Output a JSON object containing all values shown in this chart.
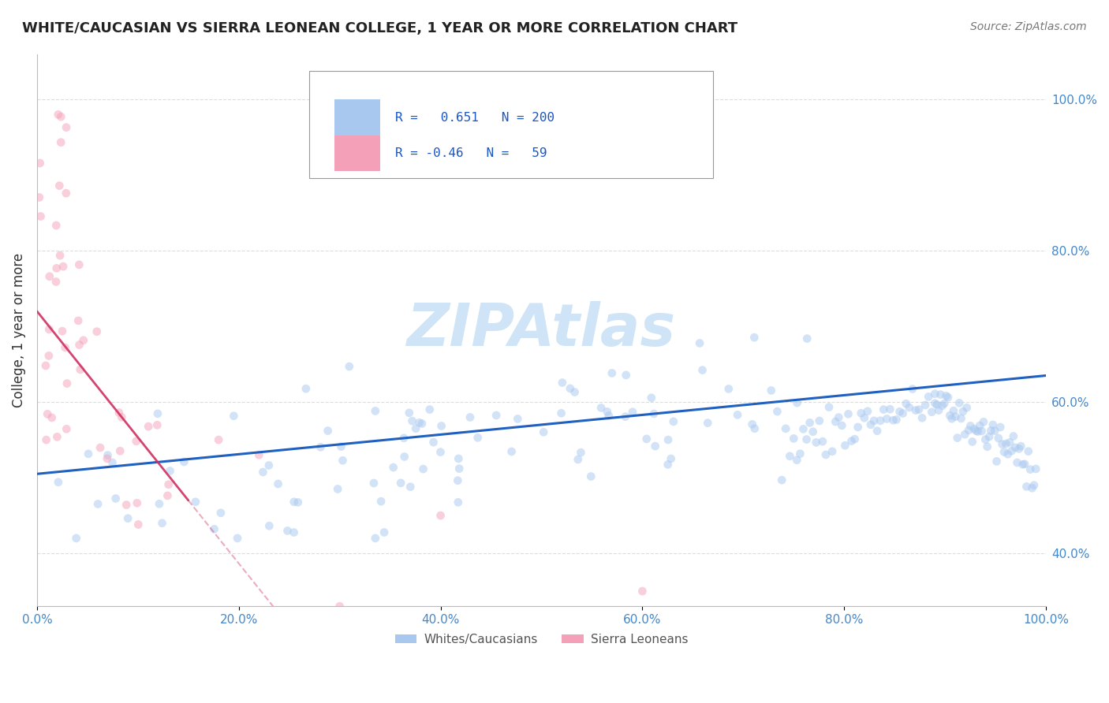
{
  "title": "WHITE/CAUCASIAN VS SIERRA LEONEAN COLLEGE, 1 YEAR OR MORE CORRELATION CHART",
  "source_text": "Source: ZipAtlas.com",
  "ylabel": "College, 1 year or more",
  "blue_R": 0.651,
  "blue_N": 200,
  "pink_R": -0.46,
  "pink_N": 59,
  "blue_color": "#a8c8f0",
  "pink_color": "#f4a0b8",
  "blue_line_color": "#2060c0",
  "pink_line_color": "#d03060",
  "dot_size": 60,
  "dot_alpha": 0.5,
  "watermark": "ZIPAtlas",
  "watermark_color": "#d0e4f8",
  "legend_label_blue": "Whites/Caucasians",
  "legend_label_pink": "Sierra Leoneans",
  "xlim": [
    0.0,
    100.0
  ],
  "ylim": [
    33.0,
    106.0
  ],
  "blue_line_start_y": 50.5,
  "blue_line_end_y": 63.5,
  "pink_line_start_y": 72.0,
  "pink_line_end_y": 47.0,
  "pink_line_end_x": 15.0
}
